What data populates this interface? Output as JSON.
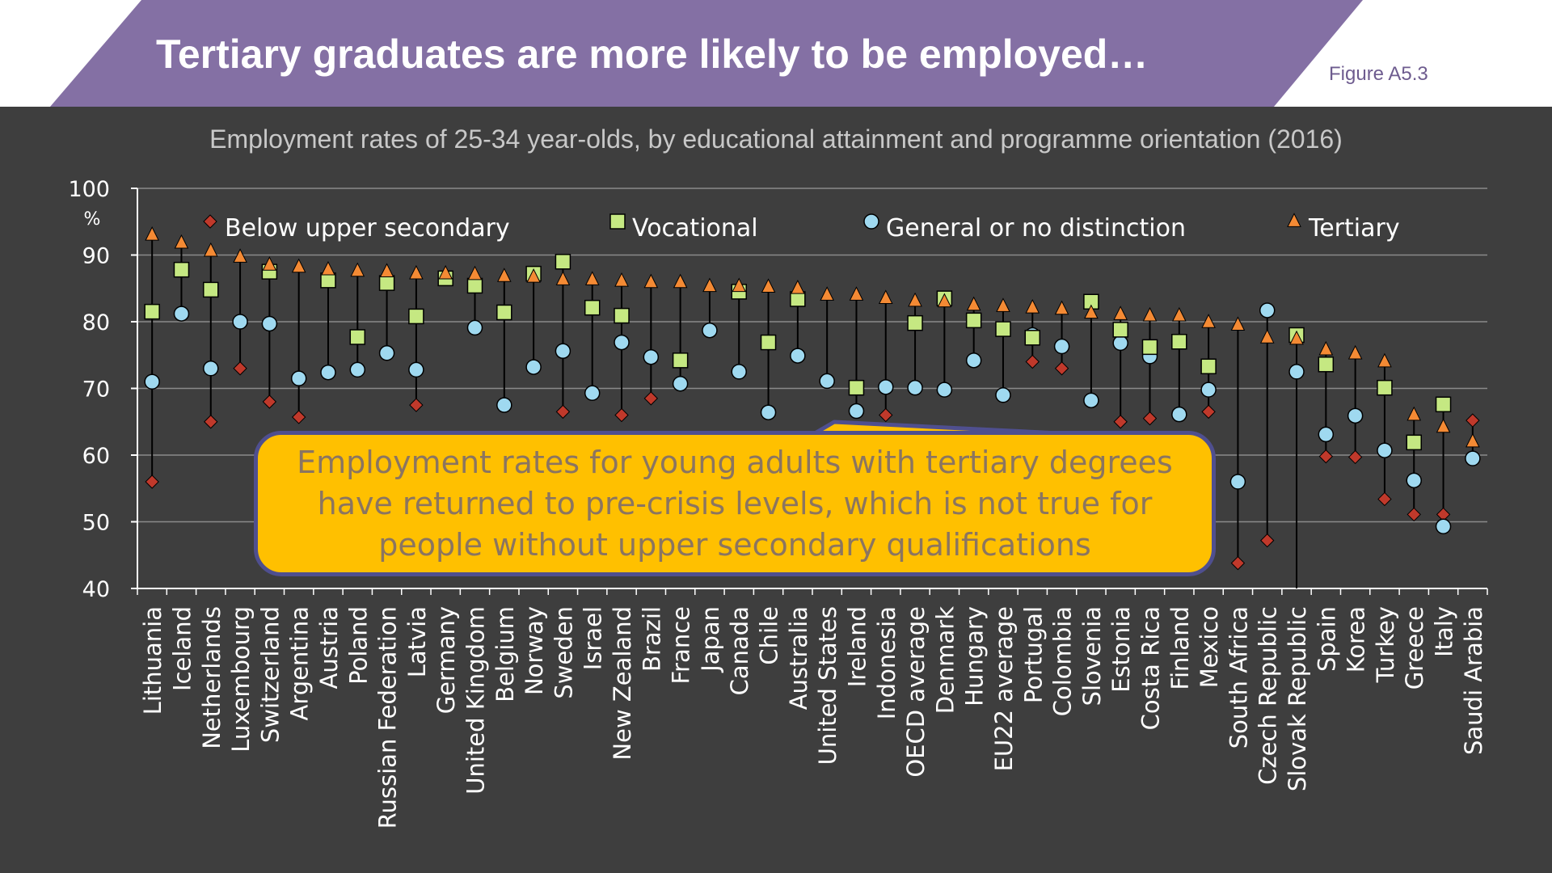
{
  "slide": {
    "title": "Tertiary graduates are more likely to be employed…",
    "figure_ref": "Figure A5.3",
    "callout": "Employment rates for young adults with tertiary degrees have returned to pre-crisis levels, which is not true for people without upper secondary qualifications"
  },
  "colors": {
    "background": "#3e3e3e",
    "banner": "#8470a4",
    "below_upper_secondary": "#c0392b",
    "vocational": "#c5e882",
    "general": "#9fd9f0",
    "tertiary": "#f48a34",
    "callout": "#ffc000"
  },
  "chart_data": {
    "type": "scatter",
    "title": "Employment rates of 25-34 year-olds, by educational attainment and programme orientation (2016)",
    "ylabel": "%",
    "ylim": [
      40,
      100
    ],
    "yticks": [
      40,
      50,
      60,
      70,
      80,
      90,
      100
    ],
    "grid": true,
    "legend_position": "top",
    "categories": [
      "Lithuania",
      "Iceland",
      "Netherlands",
      "Luxembourg",
      "Switzerland",
      "Argentina",
      "Austria",
      "Poland",
      "Russian Federation",
      "Latvia",
      "Germany",
      "United Kingdom",
      "Belgium",
      "Norway",
      "Sweden",
      "Israel",
      "New Zealand",
      "Brazil",
      "France",
      "Japan",
      "Canada",
      "Chile",
      "Australia",
      "United States",
      "Ireland",
      "Indonesia",
      "OECD average",
      "Denmark",
      "Hungary",
      "EU22 average",
      "Portugal",
      "Colombia",
      "Slovenia",
      "Estonia",
      "Costa Rica",
      "Finland",
      "Mexico",
      "South Africa",
      "Czech Republic",
      "Slovak Republic",
      "Spain",
      "Korea",
      "Turkey",
      "Greece",
      "Italy",
      "Saudi Arabia"
    ],
    "series": [
      {
        "name": "Below upper secondary",
        "marker": "diamond",
        "values": [
          56,
          null,
          65,
          73,
          68,
          65.7,
          null,
          null,
          null,
          67.5,
          null,
          null,
          null,
          null,
          66.5,
          null,
          66,
          68.5,
          null,
          null,
          null,
          null,
          null,
          null,
          null,
          66,
          null,
          null,
          null,
          null,
          74,
          73,
          null,
          65,
          65.5,
          null,
          66.5,
          43.8,
          47.2,
          null,
          59.8,
          59.7,
          53.4,
          51.1,
          51.1,
          65.2
        ]
      },
      {
        "name": "Vocational",
        "marker": "square",
        "values": [
          81.5,
          87.8,
          84.8,
          null,
          87.5,
          null,
          86.2,
          77.7,
          85.8,
          80.8,
          86.5,
          85.4,
          81.4,
          87.2,
          89,
          82.1,
          80.9,
          null,
          74.2,
          null,
          84.5,
          76.9,
          83.4,
          null,
          70.1,
          null,
          79.8,
          83.5,
          80.2,
          78.9,
          77.6,
          null,
          83,
          78.8,
          76.2,
          77,
          73.3,
          null,
          null,
          78,
          73.6,
          null,
          70.1,
          61.9,
          67.6,
          null
        ]
      },
      {
        "name": "General or no distinction",
        "marker": "circle",
        "values": [
          71,
          81.2,
          73,
          80,
          79.7,
          71.5,
          72.4,
          72.8,
          75.3,
          72.8,
          null,
          79.1,
          67.5,
          73.2,
          75.6,
          69.3,
          76.9,
          74.7,
          70.7,
          78.7,
          72.5,
          66.4,
          74.9,
          71.1,
          66.6,
          70.2,
          70.1,
          69.8,
          74.2,
          69,
          78,
          76.3,
          68.2,
          76.8,
          74.8,
          66.1,
          69.8,
          56,
          81.7,
          72.5,
          63.1,
          65.9,
          60.7,
          56.2,
          49.3,
          59.5
        ]
      },
      {
        "name": "Tertiary",
        "marker": "triangle",
        "values": [
          93,
          91.8,
          90.6,
          89.7,
          88.5,
          88.2,
          87.8,
          87.6,
          87.5,
          87.2,
          87.2,
          87.1,
          86.8,
          86.7,
          86.3,
          86.3,
          86.1,
          85.9,
          85.9,
          85.3,
          85.3,
          85.2,
          85,
          84,
          84,
          83.5,
          83.1,
          83,
          82.5,
          82.3,
          82.1,
          81.9,
          81.3,
          81.1,
          80.9,
          80.9,
          79.9,
          79.5,
          77.6,
          77.4,
          75.8,
          75.2,
          74,
          66,
          64.2,
          62
        ]
      }
    ]
  }
}
